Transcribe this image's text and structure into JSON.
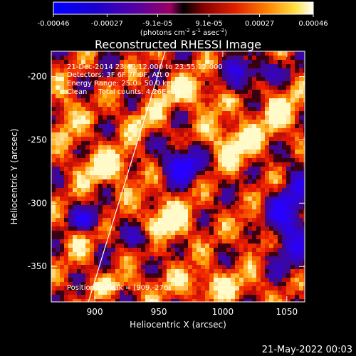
{
  "chart_data": {
    "type": "heatmap",
    "title": "Reconstructed RHESSI Image",
    "colorbar": {
      "ticks": [
        "-0.00046",
        "-0.00027",
        "-9.1e-05",
        "9.1e-05",
        "0.00027",
        "0.00046"
      ],
      "tick_values": [
        -0.00046,
        -0.00027,
        -9.1e-05,
        9.1e-05,
        0.00027,
        0.00046
      ],
      "range": [
        -0.00046,
        0.00046
      ],
      "unit_label": "(photons cm",
      "unit_sup1": "-2",
      "unit_mid": " s",
      "unit_sup2": "-1",
      "unit_mid2": " asec",
      "unit_sup3": "-2",
      "unit_end": ")"
    },
    "xlabel": "Heliocentric X (arcsec)",
    "ylabel": "Heliocentric Y (arcsec)",
    "xlim": [
      866,
      1064
    ],
    "ylim": [
      -378,
      -180
    ],
    "x_ticks": [
      900,
      950,
      1000,
      1050
    ],
    "y_ticks": [
      -200,
      -250,
      -300,
      -350
    ],
    "annotations": [
      "21-Dec-2014 23:49:12.000 to 23:55:12.000",
      "Detectors: 3F 6F 7F 9F, Att 0",
      "Energy Range: 25.0 - 50.0 keV",
      "Clean     Total counts: 4.26E+03"
    ],
    "peak_text": "Position of Peak = [909,-276]",
    "limb_line": [
      [
        895,
        -378
      ],
      [
        955,
        -180
      ]
    ],
    "grid": false
  },
  "footer": {
    "timestamp": "21-May-2022 00:03"
  },
  "colors": {
    "background": "#000000",
    "text": "#ffffff"
  }
}
